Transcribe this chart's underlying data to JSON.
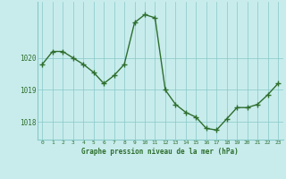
{
  "x": [
    0,
    1,
    2,
    3,
    4,
    5,
    6,
    7,
    8,
    9,
    10,
    11,
    12,
    13,
    14,
    15,
    16,
    17,
    18,
    19,
    20,
    21,
    22,
    23
  ],
  "y": [
    1019.8,
    1020.2,
    1020.2,
    1020.0,
    1019.8,
    1019.55,
    1019.2,
    1019.45,
    1019.8,
    1021.1,
    1021.35,
    1021.25,
    1019.0,
    1018.55,
    1018.3,
    1018.15,
    1017.8,
    1017.75,
    1018.1,
    1018.45,
    1018.45,
    1018.55,
    1018.85,
    1019.2
  ],
  "line_color": "#2d6e2d",
  "marker_color": "#2d6e2d",
  "bg_color": "#c8ecec",
  "grid_color": "#88c8c8",
  "xlabel": "Graphe pression niveau de la mer (hPa)",
  "xlabel_color": "#2d6e2d",
  "tick_color": "#2d6e2d",
  "ylim": [
    1017.45,
    1021.75
  ],
  "yticks": [
    1018,
    1019,
    1020
  ],
  "xlim": [
    -0.5,
    23.5
  ],
  "xticks": [
    0,
    1,
    2,
    3,
    4,
    5,
    6,
    7,
    8,
    9,
    10,
    11,
    12,
    13,
    14,
    15,
    16,
    17,
    18,
    19,
    20,
    21,
    22,
    23
  ],
  "figsize": [
    3.2,
    2.0
  ],
  "dpi": 100
}
